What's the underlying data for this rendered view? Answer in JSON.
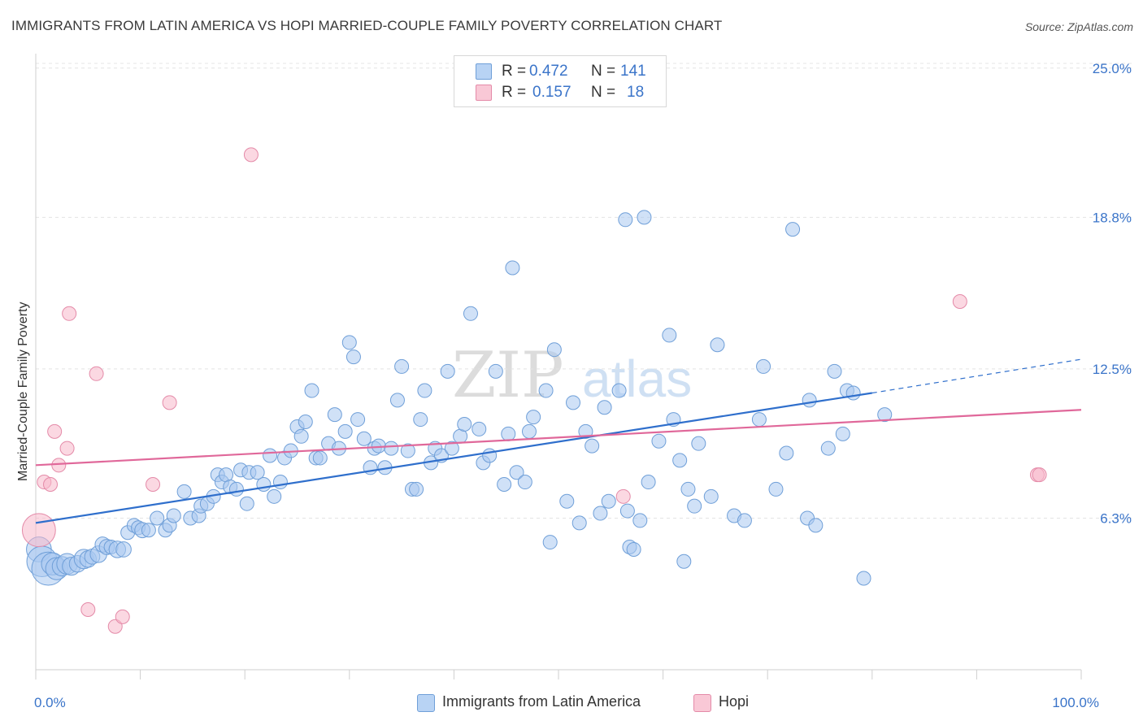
{
  "title": "IMMIGRANTS FROM LATIN AMERICA VS HOPI MARRIED-COUPLE FAMILY POVERTY CORRELATION CHART",
  "source": "Source: ZipAtlas.com",
  "watermark": {
    "zip": "ZIP",
    "atlas": "atlas"
  },
  "legend_top": {
    "rows": [
      {
        "r_label": "R =",
        "r_value": "0.472",
        "n_label": "N =",
        "n_value": "141"
      },
      {
        "r_label": "R =",
        "r_value": "0.157",
        "n_label": "N =",
        "n_value": "18"
      }
    ]
  },
  "legend_bottom": {
    "series1": "Immigrants from Latin America",
    "series2": "Hopi"
  },
  "chart_data": {
    "type": "scatter",
    "title": "IMMIGRANTS FROM LATIN AMERICA VS HOPI MARRIED-COUPLE FAMILY POVERTY CORRELATION CHART",
    "xlabel": "",
    "ylabel": "Married-Couple Family Poverty",
    "xlim": [
      0,
      100
    ],
    "ylim": [
      0,
      25.6
    ],
    "x_tick_labels": [
      {
        "value": 0,
        "label": "0.0%"
      },
      {
        "value": 100,
        "label": "100.0%"
      }
    ],
    "y_tick_labels": [
      {
        "value": 6.3,
        "label": "6.3%"
      },
      {
        "value": 12.5,
        "label": "12.5%"
      },
      {
        "value": 18.8,
        "label": "18.8%"
      },
      {
        "value": 25.0,
        "label": "25.0%"
      }
    ],
    "grid": "horizontal dashed",
    "legend": "top-center",
    "colors": {
      "series1": "#a9c8f0",
      "series1_stroke": "#6f9fd8",
      "series1_line": "#2f6fcc",
      "series2": "#f7b8cb",
      "series2_stroke": "#e48aa8",
      "series2_line": "#e0689a",
      "tick_label": "#3a74c9"
    },
    "series": [
      {
        "name": "Immigrants from Latin America",
        "r": 0.472,
        "n": 141,
        "trend": {
          "x0": 0,
          "y0": 6.1,
          "x1": 80,
          "y1": 11.5,
          "dashed_to_x": 100,
          "dashed_to_y": 12.9
        },
        "points": [
          [
            0.3,
            5.0,
            1.8
          ],
          [
            0.6,
            4.5,
            2.2
          ],
          [
            1.2,
            4.2,
            2.4
          ],
          [
            1.6,
            4.4,
            1.6
          ],
          [
            2.0,
            4.2,
            1.6
          ],
          [
            2.5,
            4.3,
            1.4
          ],
          [
            3.0,
            4.4,
            1.5
          ],
          [
            3.4,
            4.3,
            1.3
          ],
          [
            4.0,
            4.4,
            1.2
          ],
          [
            4.6,
            4.6,
            1.4
          ],
          [
            5.0,
            4.6,
            1.2
          ],
          [
            5.4,
            4.7,
            1.1
          ],
          [
            6.0,
            4.8,
            1.2
          ],
          [
            6.4,
            5.2,
            1.1
          ],
          [
            6.8,
            5.1,
            1.1
          ],
          [
            7.2,
            5.1,
            1.0
          ],
          [
            7.8,
            5.0,
            1.2
          ],
          [
            8.4,
            5.0,
            1.1
          ],
          [
            8.8,
            5.7,
            1.0
          ],
          [
            9.4,
            6.0,
            1.0
          ],
          [
            9.8,
            5.9,
            1.0
          ],
          [
            10.2,
            5.8,
            1.1
          ],
          [
            10.8,
            5.8,
            1.0
          ],
          [
            11.6,
            6.3,
            1.0
          ],
          [
            12.4,
            5.8,
            1.0
          ],
          [
            12.8,
            6.0,
            1.0
          ],
          [
            13.2,
            6.4,
            1.0
          ],
          [
            14.2,
            7.4,
            1.0
          ],
          [
            14.8,
            6.3,
            1.0
          ],
          [
            15.6,
            6.4,
            1.0
          ],
          [
            15.8,
            6.8,
            1.0
          ],
          [
            16.4,
            6.9,
            1.0
          ],
          [
            17.0,
            7.2,
            1.0
          ],
          [
            17.4,
            8.1,
            1.0
          ],
          [
            17.8,
            7.8,
            1.0
          ],
          [
            18.2,
            8.1,
            1.0
          ],
          [
            18.6,
            7.6,
            1.0
          ],
          [
            19.2,
            7.5,
            1.0
          ],
          [
            19.6,
            8.3,
            1.0
          ],
          [
            20.2,
            6.9,
            1.0
          ],
          [
            20.4,
            8.2,
            1.0
          ],
          [
            21.2,
            8.2,
            1.0
          ],
          [
            21.8,
            7.7,
            1.0
          ],
          [
            22.4,
            8.9,
            1.0
          ],
          [
            22.8,
            7.2,
            1.0
          ],
          [
            23.4,
            7.8,
            1.0
          ],
          [
            23.8,
            8.8,
            1.0
          ],
          [
            24.4,
            9.1,
            1.0
          ],
          [
            25.0,
            10.1,
            1.0
          ],
          [
            25.4,
            9.7,
            1.0
          ],
          [
            25.8,
            10.3,
            1.0
          ],
          [
            26.4,
            11.6,
            1.0
          ],
          [
            26.8,
            8.8,
            1.0
          ],
          [
            27.2,
            8.8,
            1.0
          ],
          [
            28.0,
            9.4,
            1.0
          ],
          [
            28.6,
            10.6,
            1.0
          ],
          [
            29.0,
            9.2,
            1.0
          ],
          [
            29.6,
            9.9,
            1.0
          ],
          [
            30.0,
            13.6,
            1.0
          ],
          [
            30.4,
            13.0,
            1.0
          ],
          [
            30.8,
            10.4,
            1.0
          ],
          [
            31.4,
            9.6,
            1.0
          ],
          [
            32.0,
            8.4,
            1.0
          ],
          [
            32.4,
            9.2,
            1.0
          ],
          [
            32.8,
            9.3,
            1.0
          ],
          [
            33.4,
            8.4,
            1.0
          ],
          [
            34.0,
            9.2,
            1.0
          ],
          [
            34.6,
            11.2,
            1.0
          ],
          [
            35.0,
            12.6,
            1.0
          ],
          [
            35.6,
            9.1,
            1.0
          ],
          [
            36.0,
            7.5,
            1.0
          ],
          [
            36.4,
            7.5,
            1.0
          ],
          [
            36.8,
            10.4,
            1.0
          ],
          [
            37.2,
            11.6,
            1.0
          ],
          [
            37.8,
            8.6,
            1.0
          ],
          [
            38.2,
            9.2,
            1.0
          ],
          [
            38.8,
            8.9,
            1.0
          ],
          [
            39.4,
            12.4,
            1.0
          ],
          [
            39.8,
            9.2,
            1.0
          ],
          [
            40.6,
            9.7,
            1.0
          ],
          [
            41.0,
            10.2,
            1.0
          ],
          [
            41.6,
            14.8,
            1.0
          ],
          [
            42.4,
            10.0,
            1.0
          ],
          [
            42.8,
            8.6,
            1.0
          ],
          [
            43.4,
            8.9,
            1.0
          ],
          [
            44.0,
            12.4,
            1.0
          ],
          [
            44.8,
            7.7,
            1.0
          ],
          [
            45.2,
            9.8,
            1.0
          ],
          [
            45.6,
            16.7,
            1.0
          ],
          [
            46.0,
            8.2,
            1.0
          ],
          [
            46.8,
            7.8,
            1.0
          ],
          [
            47.2,
            9.9,
            1.0
          ],
          [
            47.6,
            10.5,
            1.0
          ],
          [
            48.8,
            11.6,
            1.0
          ],
          [
            49.2,
            5.3,
            1.0
          ],
          [
            49.6,
            13.3,
            1.0
          ],
          [
            50.8,
            7.0,
            1.0
          ],
          [
            51.4,
            11.1,
            1.0
          ],
          [
            52.0,
            6.1,
            1.0
          ],
          [
            52.6,
            9.9,
            1.0
          ],
          [
            53.2,
            9.3,
            1.0
          ],
          [
            54.0,
            6.5,
            1.0
          ],
          [
            54.4,
            10.9,
            1.0
          ],
          [
            54.8,
            7.0,
            1.0
          ],
          [
            55.8,
            11.6,
            1.0
          ],
          [
            56.4,
            18.7,
            1.0
          ],
          [
            56.8,
            5.1,
            1.0
          ],
          [
            57.2,
            5.0,
            1.0
          ],
          [
            57.8,
            6.2,
            1.0
          ],
          [
            58.2,
            18.8,
            1.0
          ],
          [
            58.6,
            7.8,
            1.0
          ],
          [
            59.6,
            9.5,
            1.0
          ],
          [
            60.6,
            13.9,
            1.0
          ],
          [
            61.0,
            10.4,
            1.0
          ],
          [
            61.6,
            8.7,
            1.0
          ],
          [
            62.4,
            7.5,
            1.0
          ],
          [
            63.0,
            6.8,
            1.0
          ],
          [
            63.4,
            9.4,
            1.0
          ],
          [
            64.6,
            7.2,
            1.0
          ],
          [
            65.2,
            13.5,
            1.0
          ],
          [
            66.8,
            6.4,
            1.0
          ],
          [
            67.8,
            6.2,
            1.0
          ],
          [
            69.2,
            10.4,
            1.0
          ],
          [
            69.6,
            12.6,
            1.0
          ],
          [
            70.8,
            7.5,
            1.0
          ],
          [
            71.8,
            9.0,
            1.0
          ],
          [
            72.4,
            18.3,
            1.0
          ],
          [
            73.8,
            6.3,
            1.0
          ],
          [
            74.6,
            6.0,
            1.0
          ],
          [
            75.8,
            9.2,
            1.0
          ],
          [
            76.4,
            12.4,
            1.0
          ],
          [
            77.2,
            9.8,
            1.0
          ],
          [
            77.6,
            11.6,
            1.0
          ],
          [
            78.2,
            11.5,
            1.0
          ],
          [
            79.2,
            3.8,
            1.0
          ],
          [
            81.2,
            10.6,
            1.0
          ],
          [
            74.0,
            11.2,
            1.0
          ],
          [
            56.6,
            6.6,
            1.0
          ],
          [
            62.0,
            4.5,
            1.0
          ]
        ]
      },
      {
        "name": "Hopi",
        "r": 0.157,
        "n": 18,
        "trend": {
          "x0": 0,
          "y0": 8.5,
          "x1": 100,
          "y1": 10.8
        },
        "points": [
          [
            0.3,
            5.8,
            2.4
          ],
          [
            0.8,
            7.8,
            1.0
          ],
          [
            1.4,
            7.7,
            1.0
          ],
          [
            1.8,
            9.9,
            1.0
          ],
          [
            2.2,
            8.5,
            1.0
          ],
          [
            3.0,
            9.2,
            1.0
          ],
          [
            3.2,
            14.8,
            1.0
          ],
          [
            5.0,
            2.5,
            1.0
          ],
          [
            5.8,
            12.3,
            1.0
          ],
          [
            7.6,
            1.8,
            1.0
          ],
          [
            8.3,
            2.2,
            1.0
          ],
          [
            11.2,
            7.7,
            1.0
          ],
          [
            12.8,
            11.1,
            1.0
          ],
          [
            20.6,
            21.4,
            1.0
          ],
          [
            56.2,
            7.2,
            1.0
          ],
          [
            88.4,
            15.3,
            1.0
          ],
          [
            95.8,
            8.1,
            1.0
          ],
          [
            96.0,
            8.1,
            1.0
          ]
        ]
      }
    ]
  }
}
